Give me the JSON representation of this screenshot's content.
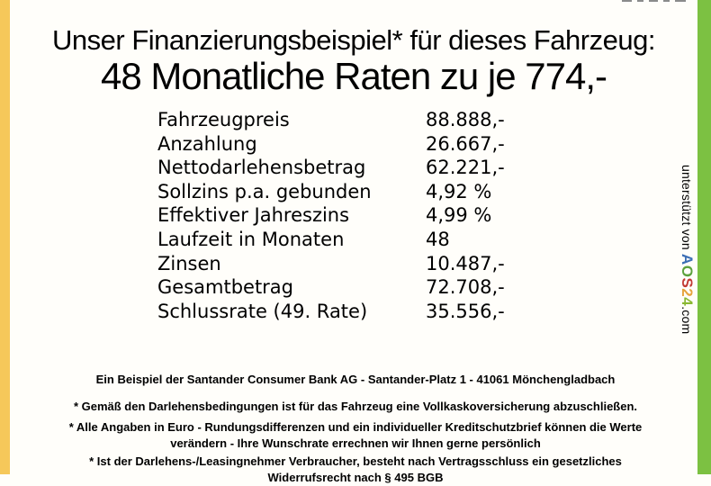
{
  "header": {
    "title": "Unser Finanzierungsbeispiel* für dieses Fahrzeug:",
    "subtitle": "48 Monatliche Raten zu je 774,-"
  },
  "financing_table": {
    "rows": [
      {
        "label": "Fahrzeugpreis",
        "value": "88.888,-"
      },
      {
        "label": "Anzahlung",
        "value": "26.667,-"
      },
      {
        "label": "Nettodarlehensbetrag",
        "value": "62.221,-"
      },
      {
        "label": "Sollzins p.a. gebunden",
        "value": "4,92 %"
      },
      {
        "label": "Effektiver Jahreszins",
        "value": "4,99 %"
      },
      {
        "label": "Laufzeit in Monaten",
        "value": "48"
      },
      {
        "label": "Zinsen",
        "value": "10.487,-"
      },
      {
        "label": "Gesamtbetrag",
        "value": "72.708,-"
      },
      {
        "label": "Schlussrate (49. Rate)",
        "value": "35.556,-"
      }
    ]
  },
  "sidebar_credit": {
    "prefix": "unterstützt von ",
    "logo_letters": [
      {
        "char": "A",
        "color": "#3b6eb5"
      },
      {
        "char": "O",
        "color": "#5fa23d",
        "color_fix": "#5ca23d"
      },
      {
        "char": "S",
        "color": "#c23a34"
      },
      {
        "char": "2",
        "color": "#e6a33c"
      },
      {
        "char": "4",
        "color": "#8ab832"
      }
    ],
    "suffix": ".com"
  },
  "footer": {
    "bank_line": "Ein Beispiel der Santander Consumer Bank AG - Santander-Platz 1 - 41061 Mönchengladbach",
    "note1": "* Gemäß den Darlehensbedingungen ist für das Fahrzeug eine Vollkaskoversicherung abzuschließen.",
    "note2": "* Alle Angaben in Euro - Rundungsdifferenzen und ein individueller Kreditschutzbrief können die Werte verändern - Ihre Wunschrate errechnen wir Ihnen gerne persönlich",
    "note3": "* Ist der Darlehens-/Leasingnehmer Verbraucher, besteht nach Vertragsschluss ein gesetzliches Widerrufsrecht nach § 495 BGB"
  },
  "colors": {
    "left_bar": "#f6c85a",
    "right_bar": "#7cc142",
    "background": "#fffefa",
    "text": "#000000"
  }
}
